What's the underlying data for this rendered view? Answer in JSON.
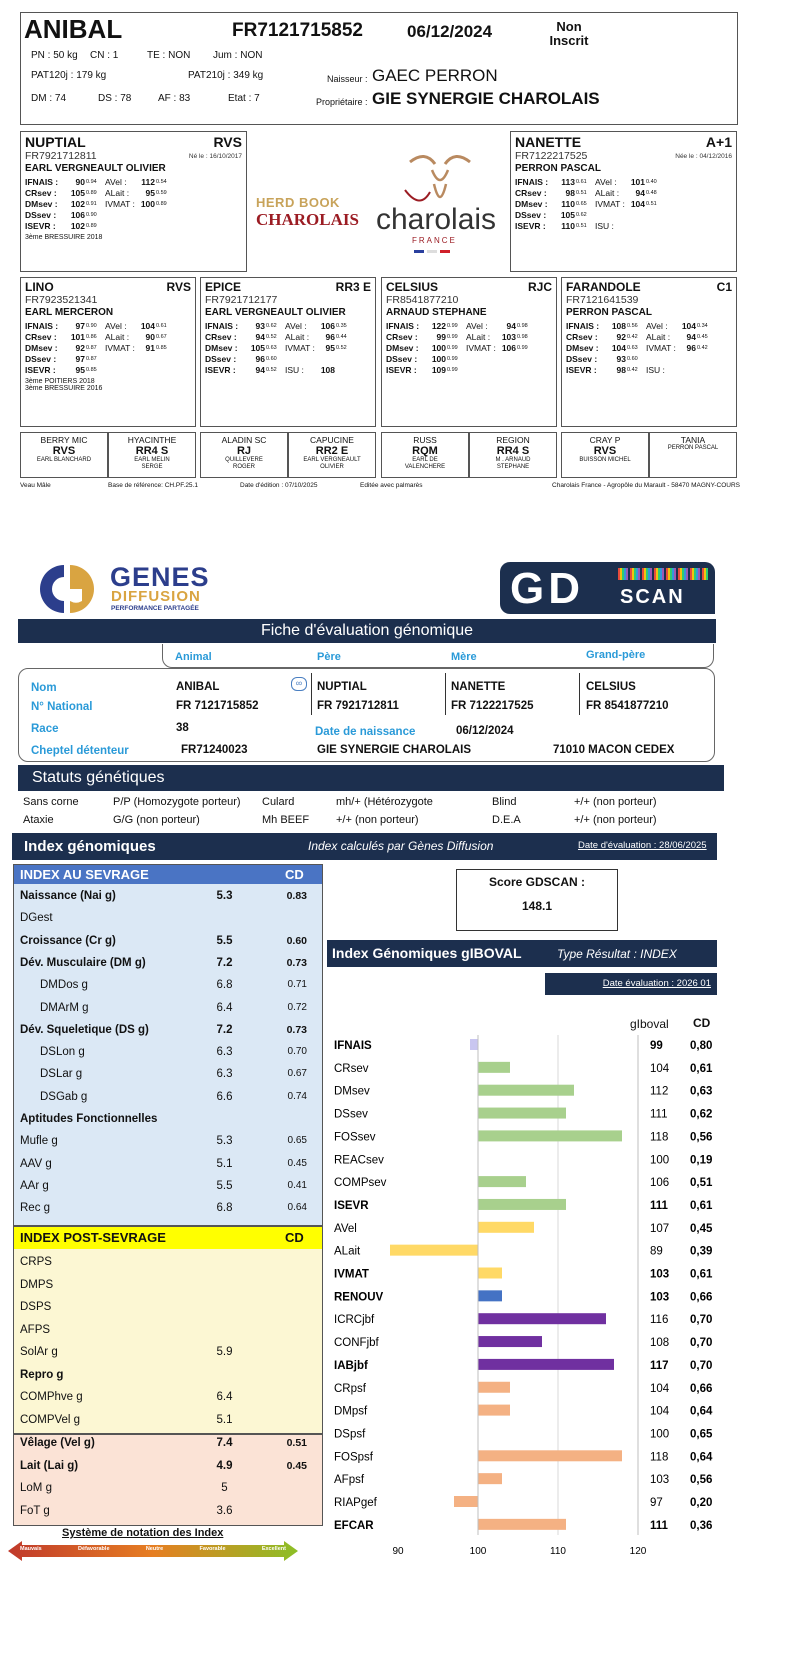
{
  "top": {
    "name": "ANIBAL",
    "national": "FR7121715852",
    "date": "06/12/2024",
    "status": "Non\nInscrit",
    "pn": "PN : 50 kg",
    "cn": "CN : 1",
    "te": "TE : NON",
    "jum": "Jum : NON",
    "pat120": "PAT120j : 179 kg",
    "pat210": "PAT210j : 349 kg",
    "dm": "DM : 74",
    "ds": "DS : 78",
    "af": "AF : 83",
    "etat": "Etat : 7",
    "naisseur_l": "Naisseur :",
    "naisseur": "GAEC PERRON",
    "prop_l": "Propriétaire :",
    "prop": "GIE SYNERGIE CHAROLAIS"
  },
  "parents": [
    {
      "name": "NUPTIAL",
      "tag": "RVS",
      "nat": "FR7921712811",
      "born": "Né le : 16/10/2017",
      "owner": "EARL VERGNEAULT OLIVIER",
      "l1": [
        "IFNAIS :",
        "90",
        "0.94",
        "AVel :",
        "112",
        "0.54"
      ],
      "l2": [
        "CRsev :",
        "105",
        "0.89",
        "ALait :",
        "95",
        "0.59"
      ],
      "l3": [
        "DMsev :",
        "102",
        "0.91",
        "IVMAT :",
        "100",
        "0.89"
      ],
      "l4": [
        "DSsev :",
        "106",
        "0.90",
        "",
        "",
        " "
      ],
      "l5": [
        "ISEVR :",
        "102",
        "0.89",
        "",
        "",
        ""
      ],
      "extra": "3ème  BRESSUIRE 2018"
    },
    {
      "name": "NANETTE",
      "tag": "A+1",
      "nat": "FR7122217525",
      "born": "Née le : 04/12/2016",
      "owner": "PERRON PASCAL",
      "l1": [
        "IFNAIS :",
        "113",
        "0.61",
        "AVel :",
        "101",
        "0.40"
      ],
      "l2": [
        "CRsev :",
        "98",
        "0.51",
        "ALait :",
        "94",
        "0.48"
      ],
      "l3": [
        "DMsev :",
        "110",
        "0.65",
        "IVMAT :",
        "104",
        "0.51"
      ],
      "l4": [
        "DSsev :",
        "105",
        "0.62",
        "",
        "",
        ""
      ],
      "l5": [
        "ISEVR :",
        "110",
        "0.51",
        "ISU :",
        "",
        ""
      ],
      "extra": ""
    }
  ],
  "logo": {
    "herdbook": "HERD BOOK",
    "charolais": "CHAROLAIS",
    "charolais2": "charolais",
    "france": "FRANCE"
  },
  "grand": [
    {
      "name": "LINO",
      "tag": "RVS",
      "nat": "FR7923521341",
      "owner": "EARL MERCERON",
      "l1": [
        "IFNAIS :",
        "97",
        "0.90",
        "AVel :",
        "104",
        "0.61"
      ],
      "l2": [
        "CRsev :",
        "101",
        "0.86",
        "ALait :",
        "90",
        "0.67"
      ],
      "l3": [
        "DMsev :",
        "92",
        "0.87",
        "IVMAT :",
        "91",
        "0.85"
      ],
      "l4": [
        "DSsev :",
        "97",
        "0.87",
        "",
        "",
        ""
      ],
      "l5": [
        "ISEVR :",
        "95",
        "0.85",
        "",
        "",
        ""
      ],
      "extra1": "3ème  POITIERS 2018",
      "extra2": "3ème  BRESSUIRE 2016"
    },
    {
      "name": "EPICE",
      "tag": "RR3 E",
      "nat": "FR7921712177",
      "owner": "EARL VERGNEAULT OLIVIER",
      "l1": [
        "IFNAIS :",
        "93",
        "0.62",
        "AVel :",
        "106",
        "0.35"
      ],
      "l2": [
        "CRsev :",
        "94",
        "0.52",
        "ALait :",
        "96",
        "0.44"
      ],
      "l3": [
        "DMsev :",
        "105",
        "0.63",
        "IVMAT :",
        "95",
        "0.52"
      ],
      "l4": [
        "DSsev :",
        "96",
        "0.60",
        "",
        "",
        ""
      ],
      "l5": [
        "ISEVR :",
        "94",
        "0.52",
        "ISU :",
        "108",
        ""
      ],
      "extra1": "",
      "extra2": ""
    },
    {
      "name": "CELSIUS",
      "tag": "RJC",
      "nat": "FR8541877210",
      "owner": "ARNAUD STEPHANE",
      "l1": [
        "IFNAIS :",
        "122",
        "0.99",
        "AVel :",
        "94",
        "0.98"
      ],
      "l2": [
        "CRsev :",
        "99",
        "0.99",
        "ALait :",
        "103",
        "0.98"
      ],
      "l3": [
        "DMsev :",
        "100",
        "0.99",
        "IVMAT :",
        "106",
        "0.99"
      ],
      "l4": [
        "DSsev :",
        "100",
        "0.99",
        "",
        "",
        ""
      ],
      "l5": [
        "ISEVR :",
        "109",
        "0.99",
        "",
        "",
        ""
      ],
      "extra1": "",
      "extra2": ""
    },
    {
      "name": "FARANDOLE",
      "tag": "C1",
      "nat": "FR7121641539",
      "owner": "PERRON PASCAL",
      "l1": [
        "IFNAIS :",
        "108",
        "0.56",
        "AVel :",
        "104",
        "0.34"
      ],
      "l2": [
        "CRsev :",
        "92",
        "0.42",
        "ALait :",
        "94",
        "0.45"
      ],
      "l3": [
        "DMsev :",
        "104",
        "0.63",
        "IVMAT :",
        "96",
        "0.42"
      ],
      "l4": [
        "DSsev :",
        "93",
        "0.60",
        "",
        "",
        ""
      ],
      "l5": [
        "ISEVR :",
        "98",
        "0.42",
        "ISU :",
        "",
        ""
      ],
      "extra1": "",
      "extra2": ""
    }
  ],
  "great": [
    {
      "name": "BERRY MIC",
      "tag": "RVS",
      "owner": "EARL BLANCHARD"
    },
    {
      "name": "HYACINTHE",
      "tag": "RR4 S",
      "owner": "EARL MELIN\nSERGE"
    },
    {
      "name": "ALADIN SC",
      "tag": "RJ",
      "owner": "QUILLEVERE\nROGER"
    },
    {
      "name": "CAPUCINE",
      "tag": "RR2 E",
      "owner": "EARL VERGNEAULT\nOLIVIER"
    },
    {
      "name": "RUSS",
      "tag": "RQM",
      "owner": "EARL DE\nVALENCHERE"
    },
    {
      "name": "REGION",
      "tag": "RR4 S",
      "owner": "M . ARNAUD\nSTEPHANE"
    },
    {
      "name": "CRAY P",
      "tag": "RVS",
      "owner": "BUISSON MICHEL"
    },
    {
      "name": "TANIA",
      "tag": "",
      "owner": "PERRON PASCAL"
    }
  ],
  "footer": {
    "a": "Veau Mâle",
    "b": "Base de référence: CH.PF.25.1",
    "c": "Date d'édition : 07/10/2025",
    "d": "Editée avec palmarès",
    "e": "Charolais France - Agropôle du Marault - 58470 MAGNY-COURS"
  },
  "gd": {
    "logo1": "GENES",
    "logo2": "DIFFUSION",
    "logo3": "PERFORMANCE PARTAGÉE",
    "scan1": "GD",
    "scan2": "SCAN",
    "title": "Fiche d'évaluation génomique",
    "h_animal": "Animal",
    "h_pere": "Père",
    "h_mere": "Mère",
    "h_gp": "Grand-père",
    "l_nom": "Nom",
    "l_nat": "N° National",
    "l_race": "Race",
    "l_chep": "Cheptel détenteur",
    "l_dn": "Date de naissance",
    "nom": "ANIBAL",
    "nat": "FR 7121715852",
    "race": "38",
    "chep": "FR71240023",
    "dn": "06/12/2024",
    "pere": "NUPTIAL",
    "pere_nat": "FR 7921712811",
    "mere": "NANETTE",
    "mere_nat": "FR 7122217525",
    "gp": "CELSIUS",
    "gp_nat": "FR 8541877210",
    "detenteur": "GIE SYNERGIE CHAROLAIS",
    "ville": "71010 MACON CEDEX"
  },
  "statuts": {
    "title": "Statuts génétiques",
    "r1": [
      "Sans corne",
      "P/P (Homozygote porteur)",
      "Culard",
      "mh/+ (Hétérozygote",
      "Blind",
      "+/+ (non porteur)"
    ],
    "r2": [
      "Ataxie",
      "G/G (non porteur)",
      "Mh BEEF",
      "+/+ (non porteur)",
      "D.E.A",
      "+/+ (non porteur)"
    ]
  },
  "index": {
    "title": "Index génomiques",
    "sub": "Index calculés par Gènes Diffusion",
    "date": "Date d'évaluation : 28/06/2025",
    "sevrage": "INDEX AU SEVRAGE",
    "cd": "CD",
    "post": "INDEX POST-SEVRAGE",
    "cd2": "CD",
    "rows_sev": [
      {
        "l": "Naissance (Nai g)",
        "v": "5.3",
        "c": "0.83",
        "b": true
      },
      {
        "l": "DGest",
        "v": "",
        "c": "",
        "b": false
      },
      {
        "l": "Croissance (Cr g)",
        "v": "5.5",
        "c": "0.60",
        "b": true
      },
      {
        "l": "Dév. Musculaire (DM g)",
        "v": "7.2",
        "c": "0.73",
        "b": true
      },
      {
        "l": "DMDos g",
        "v": "6.8",
        "c": "0.71",
        "b": false,
        "i": 1
      },
      {
        "l": "DMArM g",
        "v": "6.4",
        "c": "0.72",
        "b": false,
        "i": 1
      },
      {
        "l": "Dév. Squeletique (DS g)",
        "v": "7.2",
        "c": "0.73",
        "b": true
      },
      {
        "l": "DSLon g",
        "v": "6.3",
        "c": "0.70",
        "b": false,
        "i": 1
      },
      {
        "l": "DSLar g",
        "v": "6.3",
        "c": "0.67",
        "b": false,
        "i": 1
      },
      {
        "l": "DSGab g",
        "v": "6.6",
        "c": "0.74",
        "b": false,
        "i": 1
      },
      {
        "l": "Aptitudes Fonctionnelles",
        "v": "",
        "c": "",
        "b": true
      },
      {
        "l": "Mufle g",
        "v": "5.3",
        "c": "0.65",
        "b": false
      },
      {
        "l": "AAV g",
        "v": "5.1",
        "c": "0.45",
        "b": false
      },
      {
        "l": "AAr g",
        "v": "5.5",
        "c": "0.41",
        "b": false
      },
      {
        "l": "Rec g",
        "v": "6.8",
        "c": "0.64",
        "b": false
      }
    ],
    "rows_post": [
      {
        "l": "CRPS",
        "v": "",
        "c": ""
      },
      {
        "l": "DMPS",
        "v": "",
        "c": ""
      },
      {
        "l": "DSPS",
        "v": "",
        "c": ""
      },
      {
        "l": "AFPS",
        "v": "",
        "c": ""
      },
      {
        "l": "SolAr g",
        "v": "5.9",
        "c": ""
      },
      {
        "l": "Repro g",
        "v": "",
        "c": "",
        "b": true
      },
      {
        "l": "COMPhve g",
        "v": "6.4",
        "c": ""
      },
      {
        "l": "COMPVel g",
        "v": "5.1",
        "c": ""
      }
    ],
    "rows_vel": [
      {
        "l": "Vêlage (Vel g)",
        "v": "7.4",
        "c": "0.51",
        "b": true
      },
      {
        "l": "Lait (Lai g)",
        "v": "4.9",
        "c": "0.45",
        "b": true
      },
      {
        "l": "LoM g",
        "v": "5",
        "c": ""
      },
      {
        "l": "FoT g",
        "v": "3.6",
        "c": ""
      }
    ],
    "notation": "Système de notation des Index",
    "scale": [
      "Mauvais",
      "Défavorable",
      "Neutre",
      "Favorable",
      "Excellent"
    ]
  },
  "score": {
    "label": "Score GDSCAN :",
    "value": "148.1"
  },
  "chart_data": {
    "type": "bar",
    "title": "Index Génomiques gIBOVAL",
    "type_label": "Type Résultat : INDEX",
    "date": "Date évaluation : 2026 01",
    "col1": "gIboval",
    "col2": "CD",
    "xlim": [
      90,
      120
    ],
    "xticks": [
      "90",
      "100",
      "110",
      "120"
    ],
    "bars": [
      {
        "n": "IFNAIS",
        "v": 99,
        "cd": "0,80",
        "c": "#c9c6f0",
        "b": true
      },
      {
        "n": "CRsev",
        "v": 104,
        "cd": "0,61",
        "c": "#a8d08d"
      },
      {
        "n": "DMsev",
        "v": 112,
        "cd": "0,63",
        "c": "#a8d08d"
      },
      {
        "n": "DSsev",
        "v": 111,
        "cd": "0,62",
        "c": "#a8d08d"
      },
      {
        "n": "FOSsev",
        "v": 118,
        "cd": "0,56",
        "c": "#a8d08d"
      },
      {
        "n": "REACsev",
        "v": 100,
        "cd": "0,19",
        "c": "#a8d08d"
      },
      {
        "n": "COMPsev",
        "v": 106,
        "cd": "0,51",
        "c": "#a8d08d"
      },
      {
        "n": "ISEVR",
        "v": 111,
        "cd": "0,61",
        "c": "#a8d08d",
        "b": true
      },
      {
        "n": "AVel",
        "v": 107,
        "cd": "0,45",
        "c": "#ffd966"
      },
      {
        "n": "ALait",
        "v": 89,
        "cd": "0,39",
        "c": "#ffd966"
      },
      {
        "n": "IVMAT",
        "v": 103,
        "cd": "0,61",
        "c": "#ffd966",
        "b": true
      },
      {
        "n": "RENOUV",
        "v": 103,
        "cd": "0,66",
        "c": "#4472c4",
        "b": true
      },
      {
        "n": "ICRCjbf",
        "v": 116,
        "cd": "0,70",
        "c": "#7030a0"
      },
      {
        "n": "CONFjbf",
        "v": 108,
        "cd": "0,70",
        "c": "#7030a0"
      },
      {
        "n": "IABjbf",
        "v": 117,
        "cd": "0,70",
        "c": "#7030a0",
        "b": true
      },
      {
        "n": "CRpsf",
        "v": 104,
        "cd": "0,66",
        "c": "#f4b183"
      },
      {
        "n": "DMpsf",
        "v": 104,
        "cd": "0,64",
        "c": "#f4b183"
      },
      {
        "n": "DSpsf",
        "v": 100,
        "cd": "0,65",
        "c": "#f4b183"
      },
      {
        "n": "FOSpsf",
        "v": 118,
        "cd": "0,64",
        "c": "#f4b183"
      },
      {
        "n": "AFpsf",
        "v": 103,
        "cd": "0,56",
        "c": "#f4b183"
      },
      {
        "n": "RIAPgef",
        "v": 97,
        "cd": "0,20",
        "c": "#f4b183"
      },
      {
        "n": "EFCAR",
        "v": 111,
        "cd": "0,36",
        "c": "#f4b183",
        "b": true
      }
    ]
  }
}
